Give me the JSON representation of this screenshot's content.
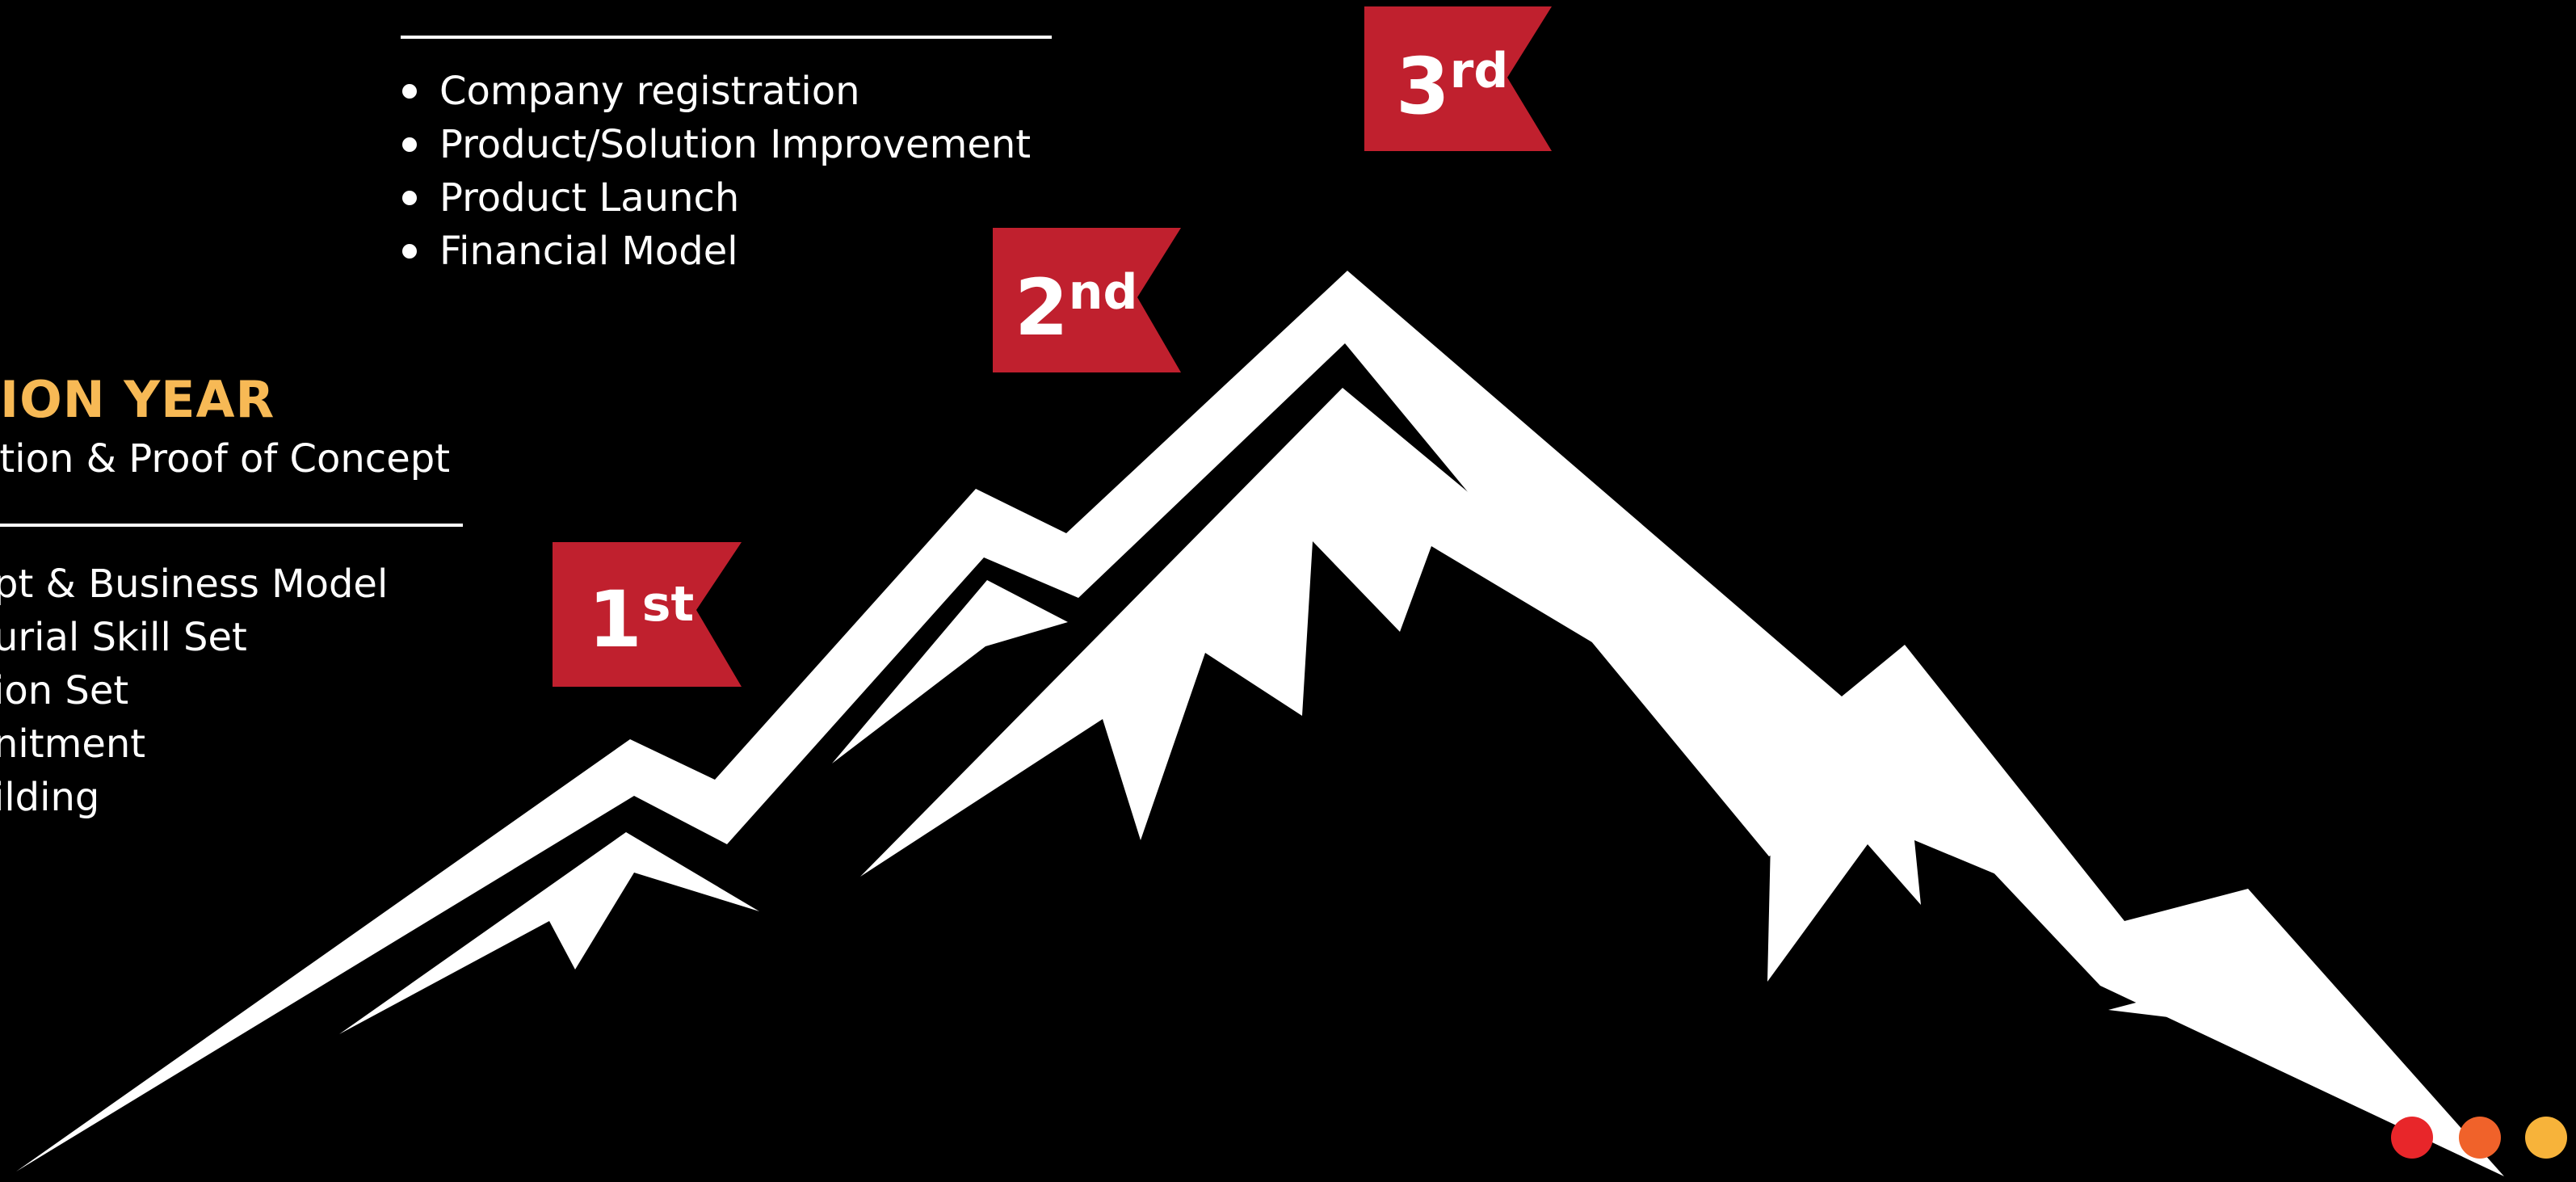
{
  "top_section": {
    "items": [
      "Company registration",
      "Product/Solution Improvement",
      "Product Launch",
      "Financial Model"
    ]
  },
  "left_section": {
    "heading": "ION YEAR",
    "subheading": "ation & Proof of Concept",
    "items": [
      "pt & Business Model",
      "urial Skill Set",
      "ion Set",
      "nitment",
      "ilding"
    ]
  },
  "flags": [
    {
      "number": "1",
      "suffix": "st"
    },
    {
      "number": "2",
      "suffix": "nd"
    },
    {
      "number": "3",
      "suffix": "rd"
    }
  ],
  "colors": {
    "background": "#000000",
    "flag_red": "#c0202e",
    "heading_gold": "#f7b955",
    "dot_red": "#e8262a",
    "dot_orange": "#f0622a",
    "dot_yellow": "#f7b33a"
  },
  "icons": {
    "mountain": "mountain-range-icon",
    "flags": "ribbon-flag-icon",
    "dots": "progress-dots"
  }
}
